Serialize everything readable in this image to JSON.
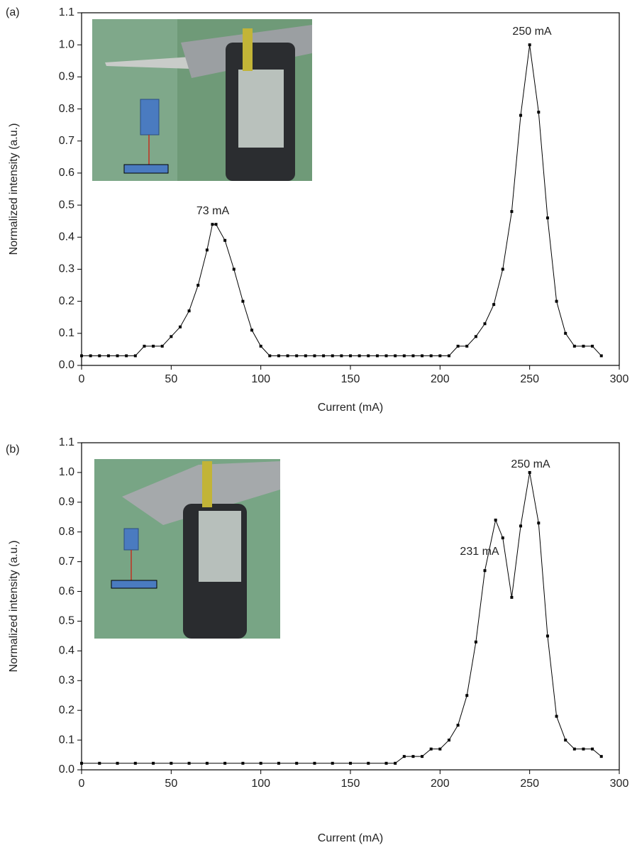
{
  "chart_data": [
    {
      "type": "line",
      "panel_label": "(a)",
      "x_label": "Current (mA)",
      "y_label": "Normalized intensity (a.u.)",
      "annotations": [
        "73 mA",
        "250 mA"
      ],
      "x": [
        0,
        5,
        10,
        15,
        20,
        25,
        30,
        35,
        40,
        45,
        50,
        55,
        60,
        65,
        70,
        73,
        75,
        80,
        85,
        90,
        95,
        100,
        105,
        110,
        115,
        120,
        125,
        130,
        135,
        140,
        145,
        150,
        155,
        160,
        165,
        170,
        175,
        180,
        185,
        190,
        195,
        200,
        205,
        210,
        215,
        220,
        225,
        230,
        235,
        240,
        245,
        250,
        255,
        260,
        265,
        270,
        275,
        280,
        285,
        290
      ],
      "series": [
        {
          "name": "(a)",
          "color": "#000000",
          "values": [
            0.03,
            0.03,
            0.03,
            0.03,
            0.03,
            0.03,
            0.03,
            0.06,
            0.06,
            0.06,
            0.09,
            0.12,
            0.17,
            0.25,
            0.36,
            0.44,
            0.44,
            0.39,
            0.3,
            0.2,
            0.11,
            0.06,
            0.03,
            0.03,
            0.03,
            0.03,
            0.03,
            0.03,
            0.03,
            0.03,
            0.03,
            0.03,
            0.03,
            0.03,
            0.03,
            0.03,
            0.03,
            0.03,
            0.03,
            0.03,
            0.03,
            0.03,
            0.03,
            0.06,
            0.06,
            0.09,
            0.13,
            0.19,
            0.3,
            0.48,
            0.78,
            1.0,
            0.79,
            0.46,
            0.2,
            0.1,
            0.06,
            0.06,
            0.06,
            0.03
          ]
        }
      ],
      "xlim": [
        0,
        300
      ],
      "xticks": [
        0,
        50,
        100,
        150,
        200,
        250,
        300
      ],
      "ylim": [
        0,
        1.1
      ],
      "yticks": [
        {
          "value": 0,
          "label": "0.0"
        },
        0.1,
        0.2,
        0.3,
        0.4,
        0.5,
        0.6,
        0.7,
        0.8,
        0.9,
        {
          "value": 1,
          "label": "1.0"
        },
        1.1
      ]
    },
    {
      "type": "line",
      "panel_label": "(b)",
      "x_label": "Current (mA)",
      "y_label": "Normalized intensity (a.u.)",
      "annotations": [
        "231 mA",
        "250 mA"
      ],
      "x": [
        0,
        10,
        20,
        30,
        40,
        50,
        60,
        70,
        80,
        90,
        100,
        110,
        120,
        130,
        140,
        150,
        160,
        170,
        175,
        180,
        185,
        190,
        195,
        200,
        205,
        210,
        215,
        220,
        225,
        231,
        235,
        240,
        245,
        250,
        255,
        260,
        265,
        270,
        275,
        280,
        285,
        290
      ],
      "series": [
        {
          "name": "(b)",
          "color": "#000000",
          "values": [
            0.022,
            0.022,
            0.022,
            0.022,
            0.022,
            0.022,
            0.022,
            0.022,
            0.022,
            0.022,
            0.022,
            0.022,
            0.022,
            0.022,
            0.022,
            0.022,
            0.022,
            0.022,
            0.022,
            0.045,
            0.045,
            0.045,
            0.07,
            0.07,
            0.1,
            0.15,
            0.25,
            0.43,
            0.67,
            0.84,
            0.78,
            0.58,
            0.82,
            1.0,
            0.83,
            0.45,
            0.18,
            0.1,
            0.07,
            0.07,
            0.07,
            0.045
          ]
        }
      ],
      "xlim": [
        0,
        300
      ],
      "xticks": [
        0,
        50,
        100,
        150,
        200,
        250,
        300
      ],
      "ylim": [
        0,
        1.1
      ],
      "yticks": [
        {
          "value": 0,
          "label": "0.0"
        },
        0.1,
        0.2,
        0.3,
        0.4,
        0.5,
        0.6,
        0.7,
        0.8,
        0.9,
        {
          "value": 1,
          "label": "1.0"
        },
        1.1
      ]
    }
  ]
}
